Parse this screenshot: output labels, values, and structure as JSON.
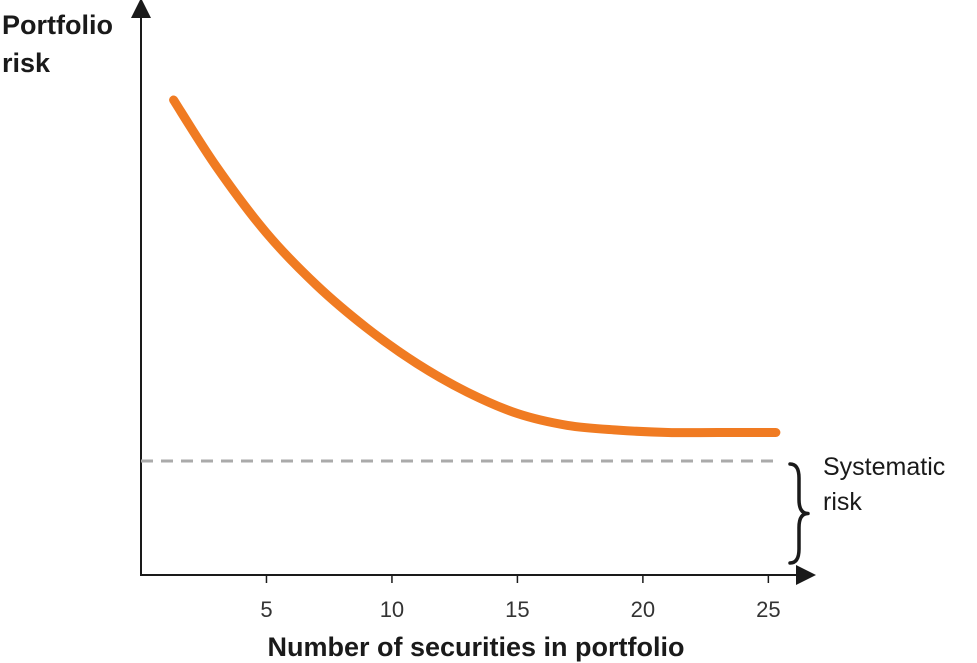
{
  "chart_data": {
    "type": "line",
    "ylabel_line1": "Portfolio",
    "ylabel_line2": "risk",
    "xlabel": "Number of securities in portfolio",
    "x_ticks": [
      "5",
      "10",
      "15",
      "20",
      "25"
    ],
    "x_tick_values": [
      5,
      10,
      15,
      20,
      25
    ],
    "xlim": [
      0,
      26.5
    ],
    "ylim": [
      0,
      1
    ],
    "series": [
      {
        "color": "#f07b22",
        "x": [
          1.3,
          3,
          5,
          7,
          9,
          11,
          13,
          15,
          17,
          19,
          21,
          23,
          25.3
        ],
        "y": [
          1.0,
          0.86,
          0.72,
          0.61,
          0.52,
          0.445,
          0.385,
          0.34,
          0.315,
          0.305,
          0.3,
          0.3,
          0.3
        ]
      }
    ],
    "reference_line": {
      "y": 0.24,
      "style": "dashed",
      "color": "#aaaaaa"
    },
    "annotation_line1": "Systematic",
    "annotation_line2": "risk",
    "grid": false
  }
}
